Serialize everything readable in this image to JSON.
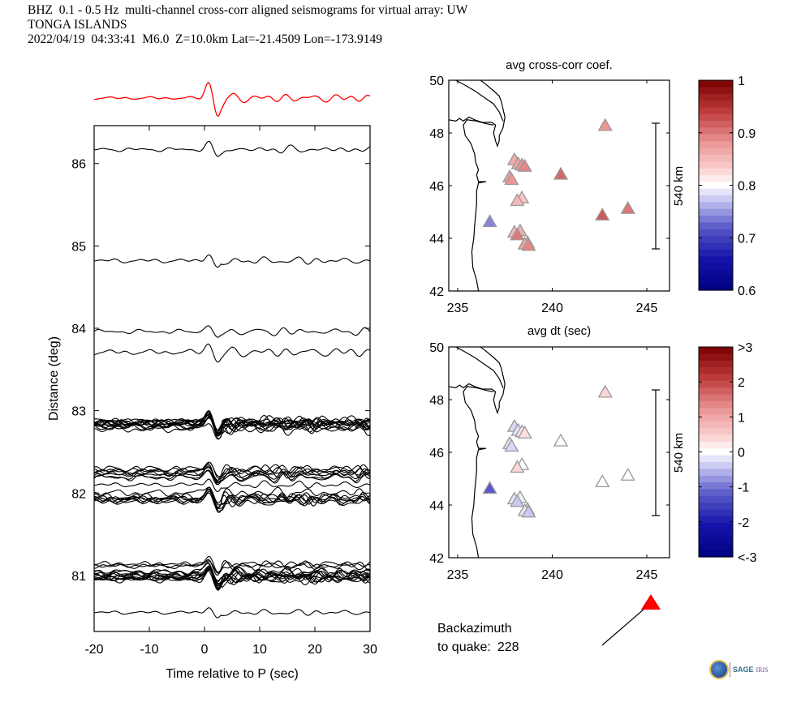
{
  "header": {
    "line1": "BHZ  0.1 - 0.5 Hz  multi-channel cross-corr aligned seismograms for virtual array: UW",
    "line2": "TONGA ISLANDS",
    "line3": "2022/04/19  04:33:41  M6.0  Z=10.0km Lat=-21.4509 Lon=-173.9149"
  },
  "backazimuth": {
    "line1": "Backazimuth",
    "line2_prefix": "to quake:",
    "value": "228",
    "arrow_color": "#ff0000"
  },
  "logo": {
    "sage": "SAGE",
    "iris": "IRIS"
  },
  "chart_data": [
    {
      "type": "line",
      "title": "",
      "xlabel": "Time relative to P (sec)",
      "ylabel": "Distance (deg)",
      "xlim": [
        -20,
        30
      ],
      "ylim": [
        80.32,
        86.46
      ],
      "xticks": [
        -20,
        -10,
        0,
        10,
        20,
        30
      ],
      "yticks": [
        81,
        82,
        83,
        84,
        85,
        86
      ],
      "stack_trace_color": "#ff0000",
      "trace_color": "#000000",
      "trace_groups": [
        {
          "distance": 86.17,
          "count": 1,
          "amp": 0.09
        },
        {
          "distance": 84.82,
          "count": 1,
          "amp": 0.1
        },
        {
          "distance": 83.96,
          "count": 1,
          "amp": 0.1
        },
        {
          "distance": 83.71,
          "count": 1,
          "amp": 0.12
        },
        {
          "distance": 82.82,
          "count": 14,
          "amp": 0.13
        },
        {
          "distance": 82.24,
          "count": 8,
          "amp": 0.12
        },
        {
          "distance": 82.1,
          "count": 1,
          "amp": 0.1
        },
        {
          "distance": 81.95,
          "count": 8,
          "amp": 0.13
        },
        {
          "distance": 81.12,
          "count": 3,
          "amp": 0.1
        },
        {
          "distance": 81.0,
          "count": 12,
          "amp": 0.12
        },
        {
          "distance": 80.55,
          "count": 1,
          "amp": 0.08
        }
      ]
    },
    {
      "type": "scatter",
      "title": "avg cross-corr coef.",
      "xlabel": "avg dt (sec)",
      "ylabel": "",
      "xlim": [
        234.53,
        246.2
      ],
      "ylim": [
        42,
        50
      ],
      "xticks": [
        235,
        240,
        245
      ],
      "yticks": [
        42,
        44,
        46,
        48,
        50
      ],
      "scale_bar_label": "540 km",
      "colorbar": {
        "range": [
          0.6,
          1.0
        ],
        "ticks": [
          "1",
          "0.9",
          "0.8",
          "0.7",
          "0.6"
        ],
        "tick_values": [
          1.0,
          0.9,
          0.8,
          0.7,
          0.6
        ]
      },
      "stations": [
        {
          "lon": 242.8,
          "lat": 48.25,
          "value": 0.88
        },
        {
          "lon": 238.0,
          "lat": 46.95,
          "value": 0.86
        },
        {
          "lon": 238.2,
          "lat": 46.8,
          "value": 0.87
        },
        {
          "lon": 238.4,
          "lat": 46.75,
          "value": 0.88
        },
        {
          "lon": 238.55,
          "lat": 46.7,
          "value": 0.89
        },
        {
          "lon": 240.45,
          "lat": 46.4,
          "value": 0.91
        },
        {
          "lon": 237.75,
          "lat": 46.3,
          "value": 0.87
        },
        {
          "lon": 237.85,
          "lat": 46.2,
          "value": 0.88
        },
        {
          "lon": 238.4,
          "lat": 45.5,
          "value": 0.84
        },
        {
          "lon": 238.15,
          "lat": 45.4,
          "value": 0.85
        },
        {
          "lon": 236.7,
          "lat": 44.6,
          "value": 0.74
        },
        {
          "lon": 242.65,
          "lat": 44.85,
          "value": 0.92
        },
        {
          "lon": 244.0,
          "lat": 45.1,
          "value": 0.9
        },
        {
          "lon": 238.0,
          "lat": 44.2,
          "value": 0.85
        },
        {
          "lon": 238.3,
          "lat": 44.25,
          "value": 0.86
        },
        {
          "lon": 238.15,
          "lat": 44.1,
          "value": 0.9
        },
        {
          "lon": 238.7,
          "lat": 43.8,
          "value": 0.88
        },
        {
          "lon": 238.55,
          "lat": 43.75,
          "value": 0.87
        },
        {
          "lon": 238.75,
          "lat": 43.7,
          "value": 0.89
        }
      ]
    },
    {
      "type": "scatter",
      "title": "avg dt (sec)",
      "xlabel": "",
      "ylabel": "",
      "xlim": [
        234.53,
        246.2
      ],
      "ylim": [
        42,
        50
      ],
      "xticks": [
        235,
        240,
        245
      ],
      "yticks": [
        42,
        44,
        46,
        48,
        50
      ],
      "scale_bar_label": "540 km",
      "colorbar": {
        "range": [
          -3,
          3
        ],
        "ticks": [
          ">3",
          "2",
          "1",
          "0",
          "-1",
          "-2",
          "<-3"
        ],
        "tick_values": [
          3,
          2,
          1,
          0,
          -1,
          -2,
          -3
        ]
      },
      "stations": [
        {
          "lon": 242.8,
          "lat": 48.25,
          "value": 0.4
        },
        {
          "lon": 238.0,
          "lat": 46.95,
          "value": -0.3
        },
        {
          "lon": 238.2,
          "lat": 46.8,
          "value": -0.2
        },
        {
          "lon": 238.4,
          "lat": 46.75,
          "value": 0.2
        },
        {
          "lon": 238.55,
          "lat": 46.7,
          "value": 0.3
        },
        {
          "lon": 240.45,
          "lat": 46.4,
          "value": 0.0
        },
        {
          "lon": 237.75,
          "lat": 46.3,
          "value": -0.2
        },
        {
          "lon": 237.85,
          "lat": 46.2,
          "value": -0.3
        },
        {
          "lon": 238.4,
          "lat": 45.5,
          "value": 0.0
        },
        {
          "lon": 238.15,
          "lat": 45.4,
          "value": 0.4
        },
        {
          "lon": 236.7,
          "lat": 44.6,
          "value": -1.2
        },
        {
          "lon": 242.65,
          "lat": 44.85,
          "value": 0.0
        },
        {
          "lon": 244.0,
          "lat": 45.1,
          "value": 0.0
        },
        {
          "lon": 238.0,
          "lat": 44.2,
          "value": -0.2
        },
        {
          "lon": 238.3,
          "lat": 44.25,
          "value": -0.1
        },
        {
          "lon": 238.15,
          "lat": 44.1,
          "value": -0.4
        },
        {
          "lon": 238.7,
          "lat": 43.8,
          "value": -0.3
        },
        {
          "lon": 238.55,
          "lat": 43.75,
          "value": -0.2
        },
        {
          "lon": 238.75,
          "lat": 43.7,
          "value": -0.4
        }
      ]
    }
  ]
}
